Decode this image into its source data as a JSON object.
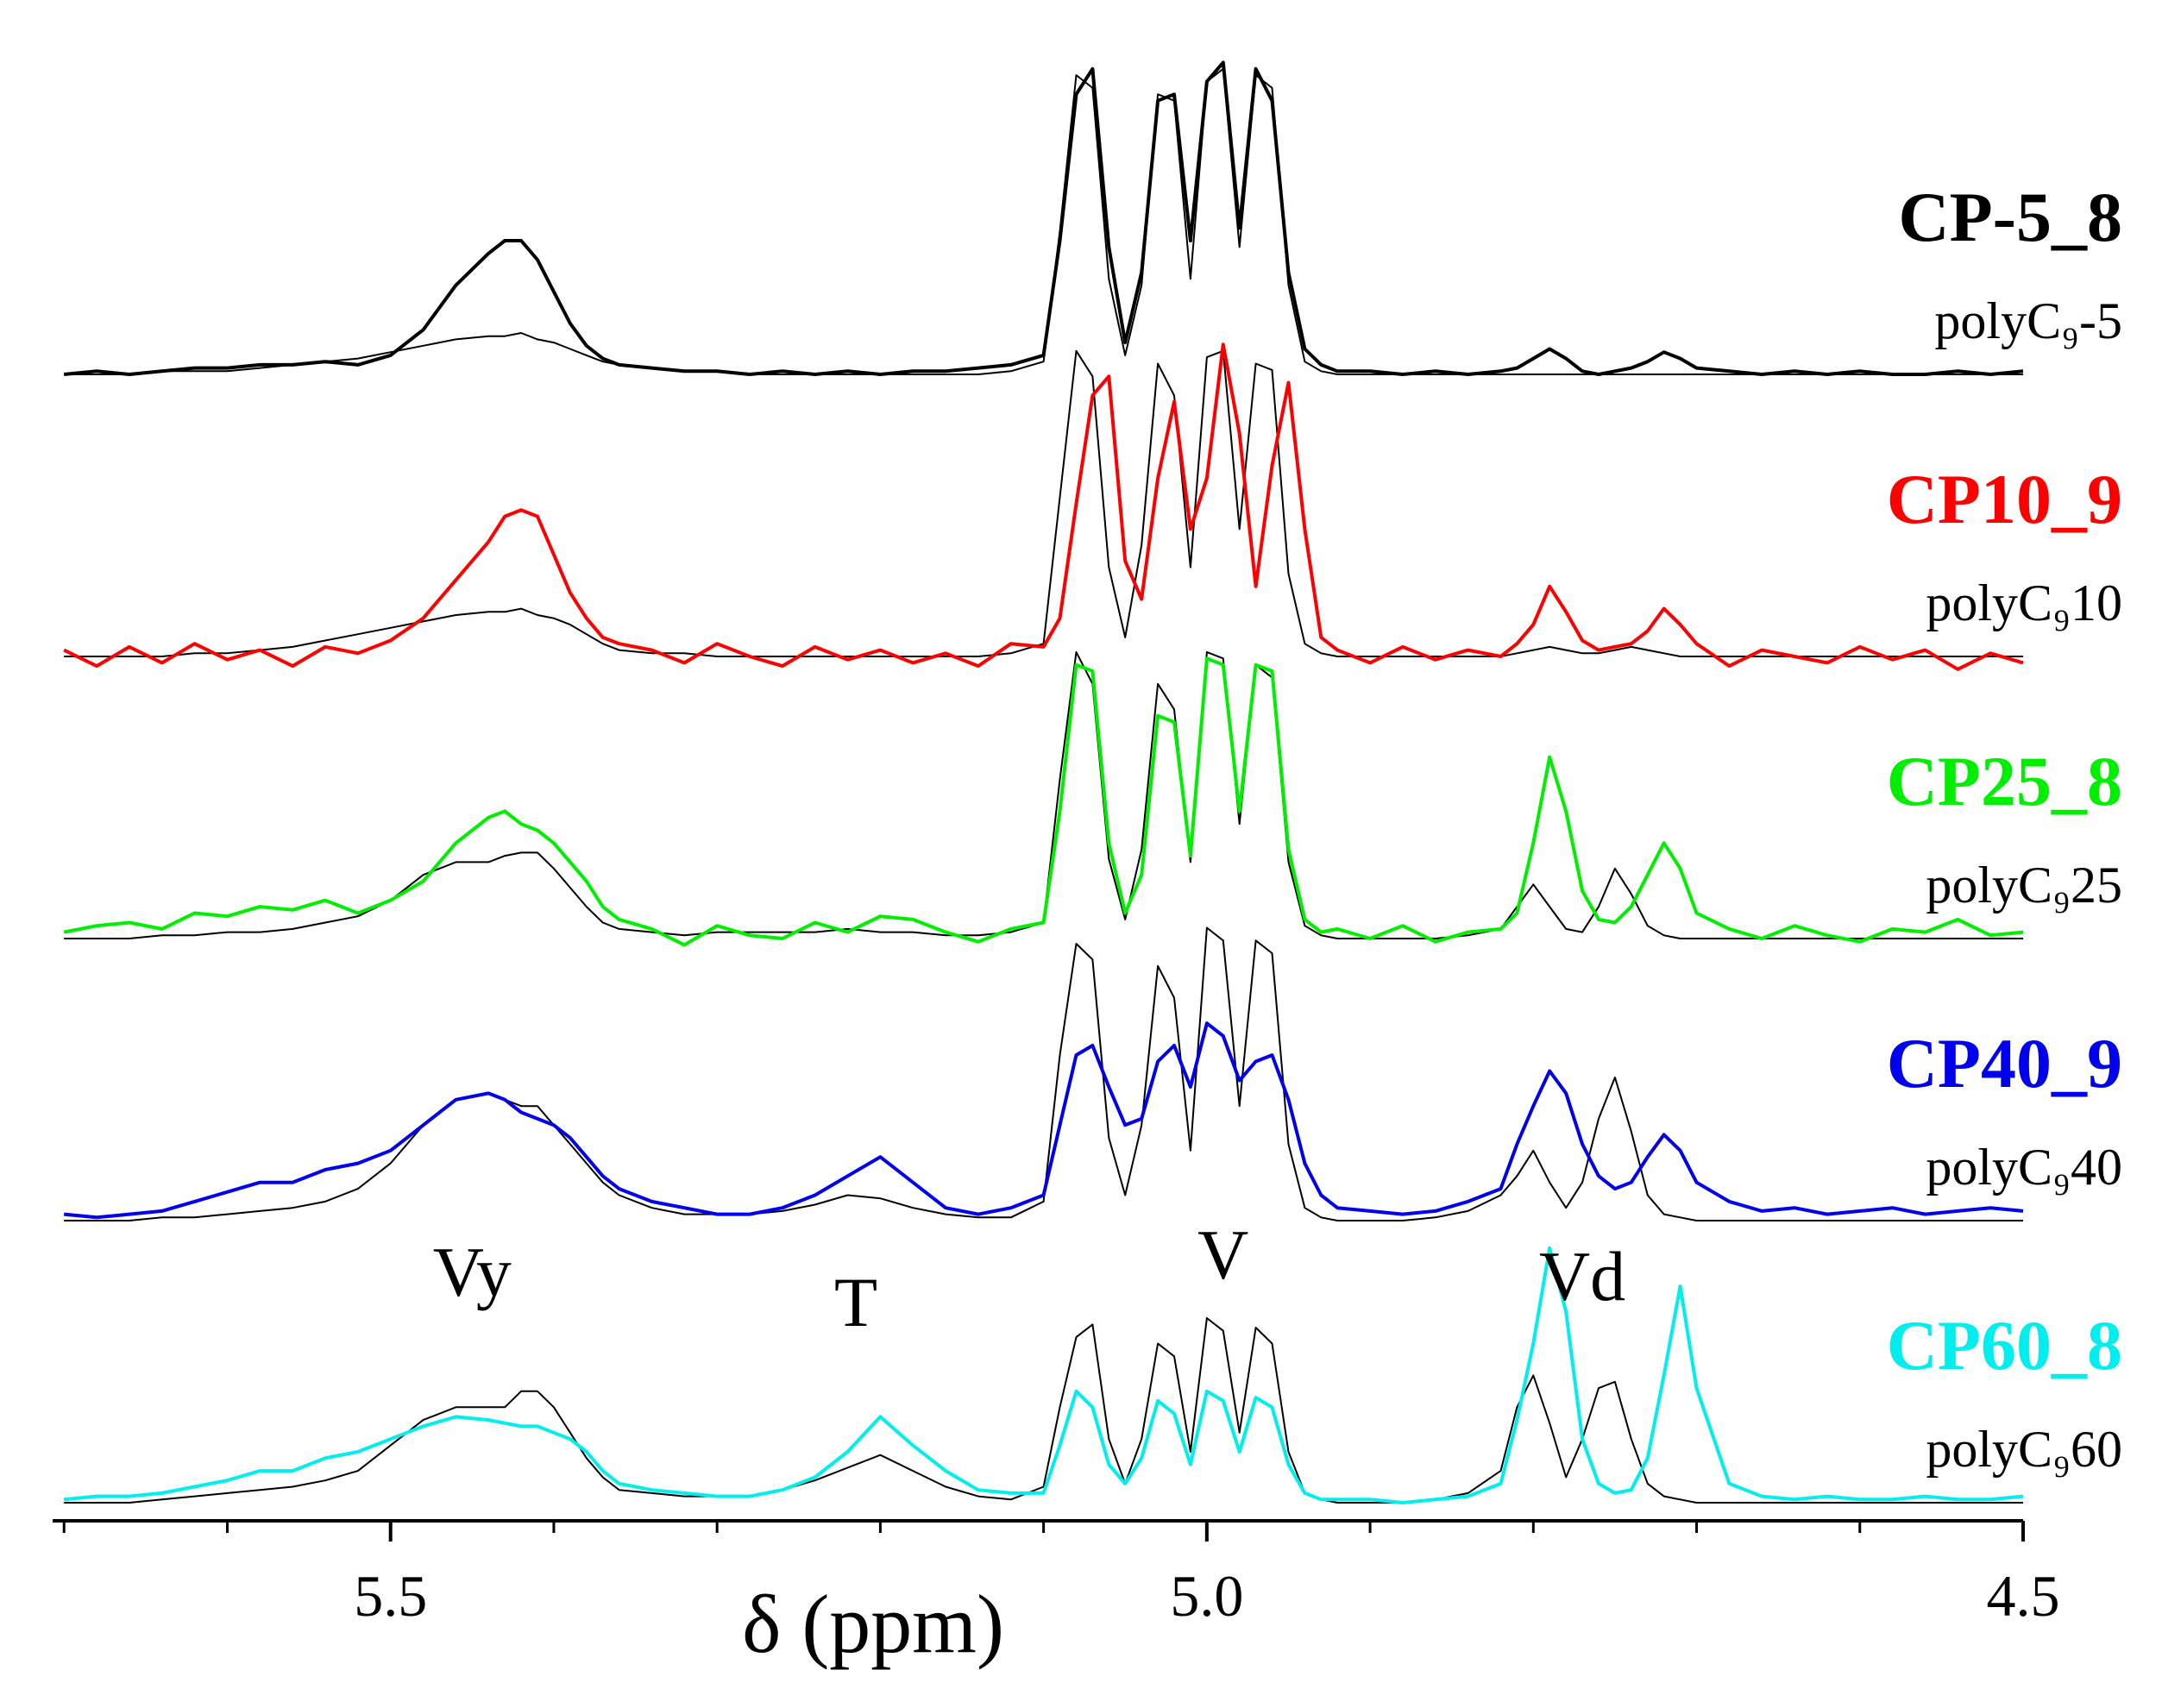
{
  "chart_data": {
    "type": "line",
    "x_label": "δ (ppm)",
    "xlim": [
      5.707,
      4.5
    ],
    "xticks": [
      5.5,
      {
        "value": 5,
        "label": "5.0"
      },
      4.5
    ],
    "xminorticks": [
      5.7,
      5.6,
      5.4,
      5.3,
      5.2,
      5.1,
      4.9,
      4.8,
      4.7,
      4.6
    ],
    "ylim": [
      0,
      100
    ],
    "x": [
      5.7,
      5.68,
      5.66,
      5.64,
      5.62,
      5.6,
      5.58,
      5.56,
      5.54,
      5.52,
      5.5,
      5.48,
      5.46,
      5.44,
      5.43,
      5.42,
      5.41,
      5.4,
      5.39,
      5.38,
      5.37,
      5.36,
      5.34,
      5.32,
      5.3,
      5.28,
      5.26,
      5.24,
      5.22,
      5.2,
      5.18,
      5.16,
      5.14,
      5.12,
      5.1,
      5.09,
      5.08,
      5.07,
      5.06,
      5.05,
      5.04,
      5.03,
      5.02,
      5.01,
      5.0,
      4.99,
      4.98,
      4.97,
      4.96,
      4.95,
      4.94,
      4.93,
      4.92,
      4.9,
      4.88,
      4.86,
      4.84,
      4.82,
      4.81,
      4.8,
      4.79,
      4.78,
      4.77,
      4.76,
      4.75,
      4.74,
      4.73,
      4.72,
      4.71,
      4.7,
      4.68,
      4.66,
      4.64,
      4.62,
      4.6,
      4.58,
      4.56,
      4.54,
      4.52,
      4.5
    ],
    "series": [
      {
        "name": "CP-5_8",
        "color": "#000000",
        "values": [
          0,
          1,
          0,
          1,
          2,
          2,
          3,
          3,
          4,
          3,
          6,
          14,
          28,
          38,
          42,
          42,
          36,
          26,
          16,
          9,
          5,
          3,
          2,
          1,
          1,
          0,
          1,
          0,
          1,
          0,
          1,
          1,
          2,
          3,
          6,
          42,
          88,
          96,
          40,
          10,
          32,
          86,
          88,
          42,
          92,
          98,
          46,
          96,
          86,
          32,
          8,
          3,
          1,
          1,
          0,
          1,
          0,
          1,
          2,
          5,
          8,
          5,
          1,
          0,
          1,
          2,
          4,
          7,
          5,
          2,
          1,
          0,
          1,
          0,
          1,
          0,
          0,
          1,
          0,
          1
        ]
      },
      {
        "name": "polyC₉-5",
        "color": "#000000",
        "values": [
          0,
          0,
          0,
          1,
          1,
          1,
          2,
          3,
          4,
          5,
          7,
          9,
          11,
          12,
          12,
          13,
          11,
          10,
          8,
          6,
          4,
          3,
          2,
          1,
          1,
          0,
          0,
          0,
          0,
          0,
          0,
          0,
          0,
          1,
          4,
          45,
          94,
          90,
          30,
          6,
          28,
          88,
          86,
          30,
          92,
          96,
          40,
          94,
          90,
          28,
          4,
          1,
          0,
          0,
          0,
          0,
          0,
          0,
          0,
          0,
          0,
          0,
          0,
          0,
          0,
          0,
          0,
          0,
          0,
          0,
          0,
          0,
          0,
          0,
          0,
          0,
          0,
          0,
          0,
          0
        ]
      },
      {
        "name": "CP10_9",
        "color": "#ff0000",
        "values": [
          2,
          -3,
          3,
          -2,
          4,
          -1,
          2,
          -3,
          3,
          1,
          5,
          12,
          24,
          36,
          44,
          46,
          44,
          32,
          20,
          12,
          6,
          4,
          2,
          -2,
          4,
          0,
          -3,
          3,
          -1,
          2,
          -2,
          1,
          -3,
          4,
          3,
          12,
          48,
          82,
          88,
          30,
          18,
          56,
          80,
          40,
          56,
          98,
          70,
          22,
          60,
          86,
          40,
          6,
          2,
          -2,
          3,
          -1,
          2,
          0,
          4,
          10,
          22,
          14,
          5,
          2,
          3,
          4,
          8,
          15,
          10,
          4,
          -3,
          2,
          0,
          -2,
          3,
          -1,
          2,
          -4,
          1,
          -2
        ]
      },
      {
        "name": "polyC₉10",
        "color": "#000000",
        "values": [
          0,
          0,
          0,
          0,
          1,
          1,
          2,
          3,
          5,
          7,
          9,
          11,
          13,
          14,
          14,
          15,
          13,
          12,
          10,
          7,
          4,
          2,
          1,
          1,
          0,
          0,
          0,
          0,
          0,
          0,
          0,
          0,
          0,
          1,
          4,
          50,
          96,
          88,
          28,
          6,
          35,
          92,
          82,
          28,
          94,
          96,
          40,
          92,
          90,
          26,
          4,
          1,
          0,
          0,
          0,
          0,
          0,
          0,
          1,
          2,
          3,
          2,
          1,
          1,
          2,
          3,
          2,
          1,
          0,
          0,
          0,
          0,
          0,
          0,
          0,
          0,
          0,
          0,
          0,
          0
        ]
      },
      {
        "name": "CP25_8",
        "color": "#00ee00",
        "values": [
          2,
          4,
          5,
          3,
          8,
          7,
          10,
          9,
          12,
          8,
          12,
          18,
          30,
          38,
          40,
          36,
          34,
          30,
          24,
          18,
          10,
          6,
          3,
          -2,
          4,
          1,
          0,
          5,
          2,
          7,
          6,
          2,
          -1,
          3,
          5,
          40,
          86,
          84,
          30,
          8,
          20,
          70,
          68,
          26,
          88,
          86,
          40,
          86,
          84,
          28,
          6,
          2,
          3,
          0,
          4,
          -1,
          2,
          3,
          8,
          30,
          57,
          40,
          15,
          6,
          5,
          10,
          20,
          30,
          22,
          8,
          3,
          0,
          4,
          1,
          -1,
          3,
          2,
          6,
          1,
          2
        ]
      },
      {
        "name": "polyC₉25",
        "color": "#000000",
        "values": [
          0,
          0,
          0,
          1,
          1,
          2,
          2,
          3,
          5,
          7,
          12,
          20,
          24,
          24,
          26,
          27,
          27,
          22,
          16,
          10,
          5,
          3,
          2,
          1,
          2,
          2,
          2,
          2,
          3,
          2,
          2,
          1,
          1,
          2,
          5,
          50,
          90,
          80,
          25,
          6,
          28,
          80,
          72,
          24,
          90,
          88,
          36,
          86,
          82,
          24,
          4,
          1,
          0,
          0,
          0,
          0,
          1,
          3,
          10,
          17,
          10,
          3,
          2,
          10,
          22,
          14,
          4,
          1,
          0,
          0,
          0,
          0,
          0,
          0,
          0,
          0,
          0,
          0,
          0,
          0
        ]
      },
      {
        "name": "CP40_9",
        "color": "#0000ee",
        "values": [
          2,
          1,
          2,
          3,
          6,
          9,
          12,
          12,
          16,
          18,
          22,
          30,
          38,
          40,
          38,
          34,
          32,
          30,
          26,
          20,
          14,
          10,
          6,
          4,
          2,
          2,
          4,
          8,
          14,
          20,
          12,
          4,
          2,
          4,
          8,
          30,
          52,
          55,
          42,
          30,
          32,
          50,
          55,
          42,
          62,
          58,
          44,
          50,
          52,
          38,
          18,
          8,
          4,
          3,
          2,
          3,
          6,
          10,
          24,
          36,
          47,
          40,
          24,
          14,
          10,
          12,
          20,
          27,
          22,
          12,
          6,
          3,
          4,
          2,
          3,
          4,
          2,
          3,
          4,
          3
        ]
      },
      {
        "name": "polyC₉40",
        "color": "#000000",
        "values": [
          0,
          0,
          0,
          1,
          1,
          2,
          3,
          4,
          6,
          10,
          18,
          30,
          38,
          40,
          38,
          36,
          36,
          30,
          24,
          18,
          12,
          8,
          4,
          2,
          2,
          2,
          3,
          5,
          8,
          7,
          4,
          2,
          1,
          1,
          6,
          52,
          87,
          82,
          26,
          8,
          30,
          80,
          70,
          22,
          92,
          88,
          36,
          88,
          84,
          24,
          4,
          1,
          0,
          0,
          0,
          1,
          3,
          8,
          14,
          22,
          12,
          4,
          12,
          32,
          45,
          28,
          8,
          2,
          1,
          0,
          0,
          0,
          0,
          0,
          0,
          0,
          0,
          0,
          0,
          0
        ]
      },
      {
        "name": "CP60_8",
        "color": "#00eeee",
        "values": [
          1,
          2,
          2,
          3,
          5,
          7,
          10,
          10,
          14,
          16,
          20,
          24,
          27,
          26,
          25,
          24,
          24,
          22,
          20,
          16,
          10,
          6,
          4,
          3,
          2,
          2,
          4,
          8,
          16,
          27,
          18,
          10,
          4,
          3,
          3,
          18,
          35,
          30,
          12,
          6,
          14,
          32,
          28,
          12,
          35,
          32,
          16,
          33,
          30,
          12,
          3,
          1,
          1,
          1,
          0,
          1,
          2,
          6,
          26,
          50,
          80,
          60,
          20,
          6,
          3,
          4,
          14,
          40,
          68,
          36,
          6,
          2,
          1,
          2,
          1,
          1,
          2,
          1,
          1,
          2
        ]
      },
      {
        "name": "polyC₉60",
        "color": "#000000",
        "values": [
          0,
          0,
          0,
          1,
          2,
          3,
          4,
          5,
          7,
          10,
          18,
          26,
          30,
          30,
          30,
          35,
          35,
          30,
          22,
          14,
          8,
          4,
          3,
          2,
          2,
          2,
          4,
          7,
          11,
          15,
          10,
          5,
          2,
          1,
          5,
          30,
          52,
          56,
          20,
          6,
          20,
          50,
          46,
          16,
          58,
          54,
          22,
          55,
          50,
          16,
          3,
          1,
          0,
          0,
          0,
          1,
          3,
          10,
          30,
          40,
          25,
          8,
          20,
          36,
          38,
          20,
          6,
          2,
          1,
          0,
          0,
          0,
          0,
          0,
          0,
          0,
          0,
          0,
          0,
          0
        ]
      }
    ],
    "annotations": [
      {
        "text": "Vy",
        "x": 5.45
      },
      {
        "text": "T",
        "x": 5.215
      },
      {
        "text": "V",
        "x": 4.99
      },
      {
        "text": "Vd",
        "x": 4.77
      }
    ]
  }
}
